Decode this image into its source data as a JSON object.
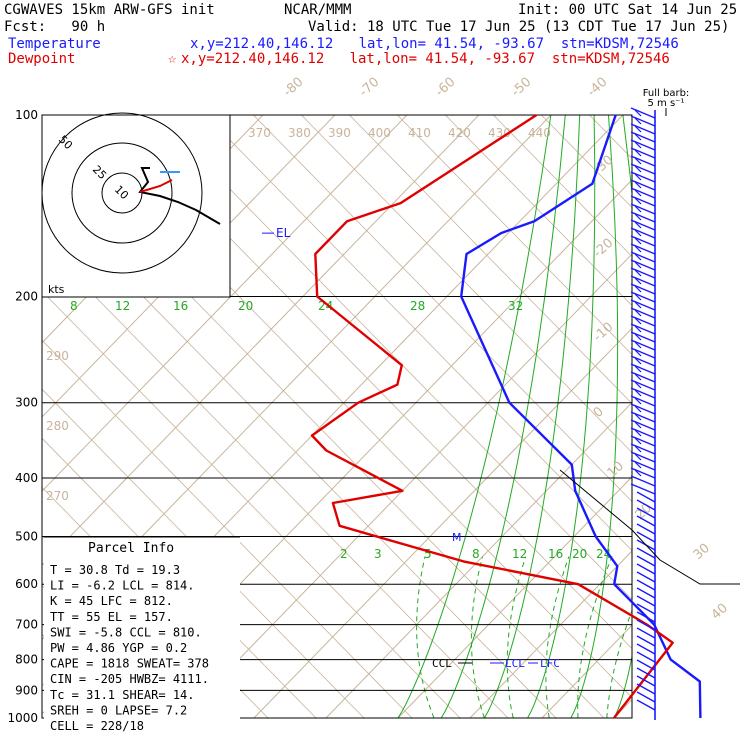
{
  "header": {
    "line1_left": "CGWAVES 15km ARW-GFS init",
    "line1_mid": "NCAR/MMM",
    "line1_right": "Init: 00 UTC Sat 14 Jun 25",
    "line2_left": "Fcst:   90 h",
    "line2_right": "Valid: 18 UTC Tue 17 Jun 25 (13 CDT Tue 17 Jun 25)",
    "temp_label": "Temperature",
    "temp_info": "x,y=212.40,146.12   lat,lon= 41.54, -93.67  stn=KDSM,72546",
    "dew_label": "Dewpoint",
    "dew_star": "☆",
    "dew_info": "x,y=212.40,146.12   lat,lon= 41.54, -93.67  stn=KDSM,72546"
  },
  "colors": {
    "temperature": "#1a1aff",
    "dewpoint": "#e00000",
    "isotherm": "#c8b49a",
    "mixing_ratio": "#22aa22"
  },
  "wind_label": [
    "Full barb:",
    "5 m s⁻¹"
  ],
  "hodograph_label": "kts",
  "hodograph_rings": [
    "50",
    "25",
    "10"
  ],
  "parcel": {
    "title": "Parcel Info",
    "rows": [
      "T  =   30.8  Td =  19.3",
      "LI =   -6.2  LCL =  814.",
      "K  =     45  LFC =  812.",
      "TT =     55  EL  =  157.",
      "SWI =  -5.8  CCL =  810.",
      "PW =   4.86  YGP =   0.2",
      "CAPE = 1818  SWEAT=  378",
      "CIN =  -205  HWBZ= 4111.",
      "Tc =   31.1  SHEAR=  14.",
      "SREH =    0  LAPSE=  7.2",
      "CELL = 228/18"
    ]
  },
  "levels": {
    "el": "EL",
    "ccl": "CCL",
    "lcl": "LCL",
    "lfc": "LFC",
    "m": "M"
  },
  "chart_data": {
    "type": "line",
    "title": "",
    "pressure_levels": [
      "100",
      "200",
      "300",
      "400",
      "500",
      "600",
      "700",
      "800",
      "900",
      "1000"
    ],
    "pressure_values": [
      100,
      200,
      300,
      400,
      500,
      600,
      700,
      800,
      900,
      1000
    ],
    "isotherm_labels": [
      "-80",
      "-70",
      "-60",
      "-50",
      "-40",
      "-30",
      "-20",
      "-10",
      "0",
      "10",
      "20",
      "30",
      "40"
    ],
    "isotherm_values": [
      -80,
      -70,
      -60,
      -50,
      -40,
      -30,
      -20,
      -10,
      0,
      10,
      20,
      30,
      40
    ],
    "mixing_ratio_upper": [
      "8",
      "12",
      "16",
      "20",
      "24",
      "28",
      "32"
    ],
    "mixing_ratio_lower": [
      "2",
      "3",
      "5",
      "8",
      "12",
      "16",
      "20",
      "24"
    ],
    "theta_labels_top": [
      "370",
      "380",
      "390",
      "400",
      "410",
      "420",
      "430",
      "440"
    ],
    "theta_labels_left": [
      "290",
      "280",
      "270"
    ],
    "series": [
      {
        "name": "Temperature",
        "p": [
          100,
          130,
          150,
          157,
          170,
          200,
          300,
          380,
          420,
          500,
          560,
          600,
          700,
          800,
          870,
          1000
        ],
        "t": [
          -61,
          -55,
          -58,
          -61,
          -63,
          -58,
          -37,
          -20,
          -16,
          -7,
          0,
          2,
          13,
          20,
          27,
          32
        ]
      },
      {
        "name": "Dewpoint",
        "p": [
          100,
          140,
          150,
          170,
          200,
          260,
          280,
          300,
          340,
          360,
          420,
          440,
          480,
          550,
          600,
          700,
          750,
          1000
        ],
        "t": [
          -72,
          -79,
          -84,
          -84,
          -78,
          -57,
          -55,
          -58,
          -60,
          -56,
          -40,
          -48,
          -44,
          -22,
          -3,
          12,
          18,
          20
        ]
      }
    ]
  }
}
